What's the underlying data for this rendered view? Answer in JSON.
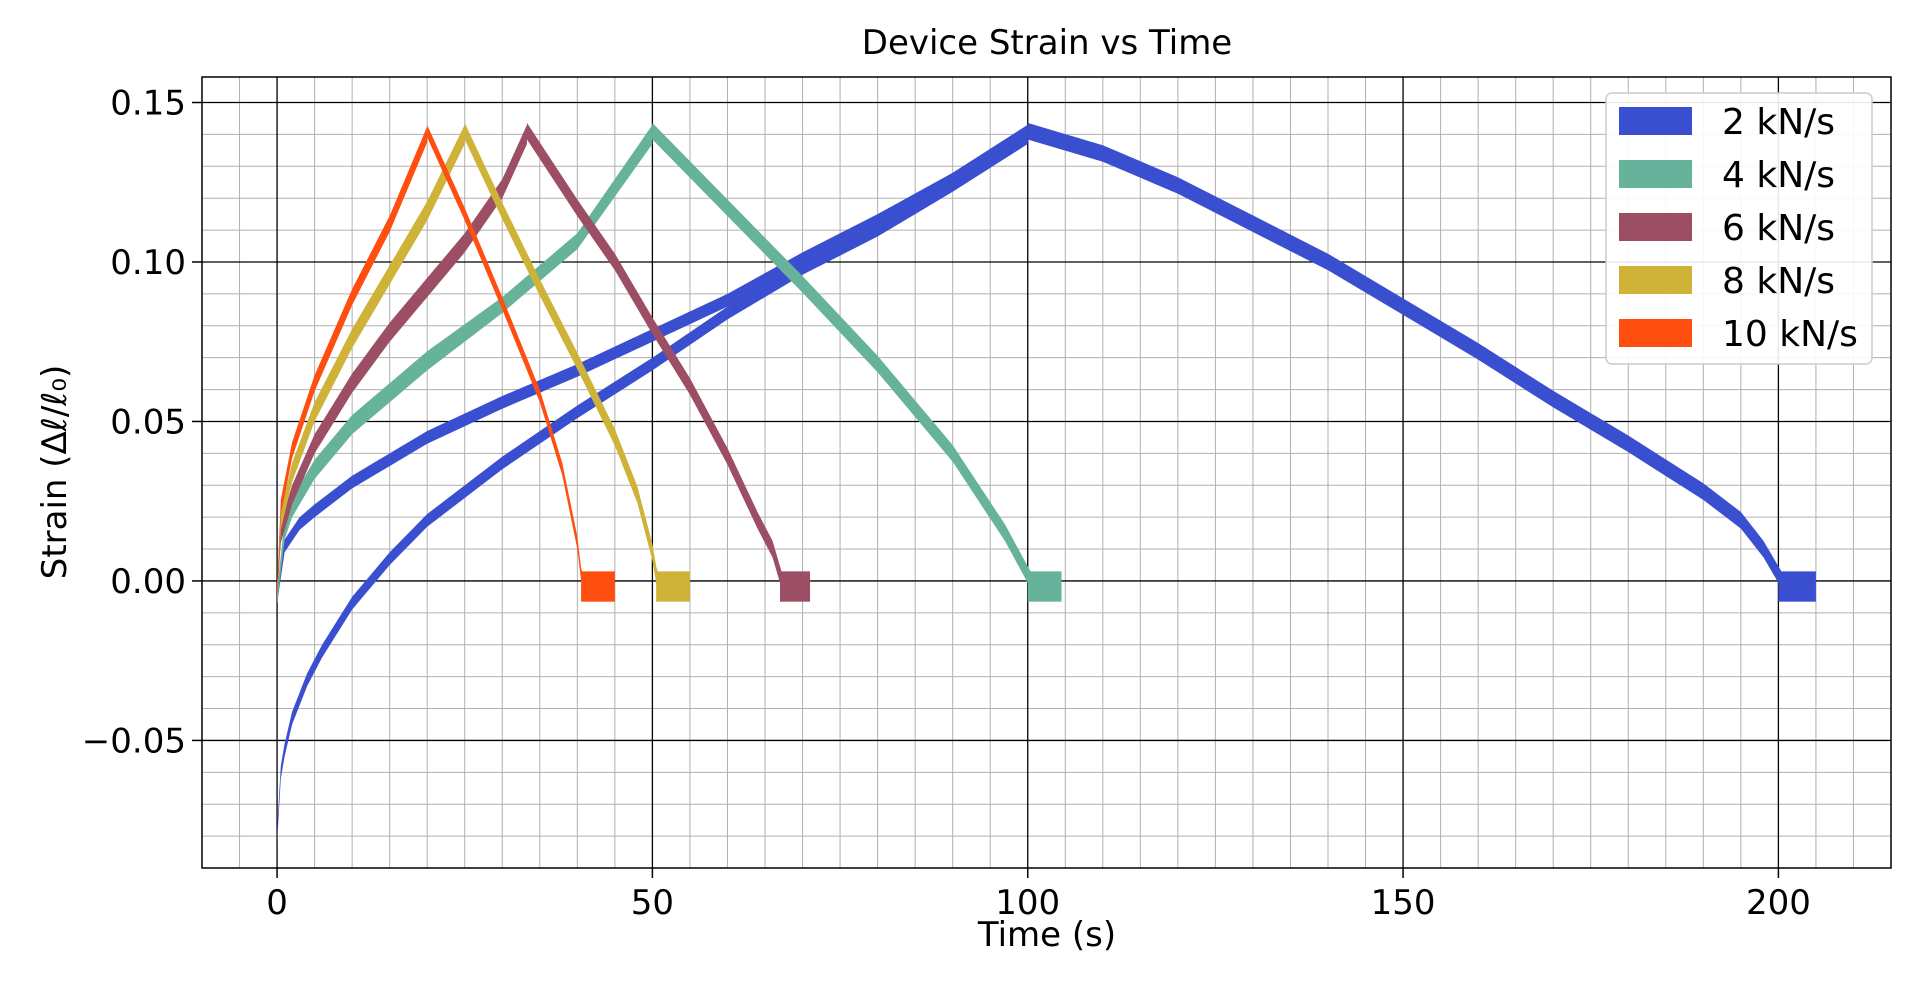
{
  "chart_data": {
    "type": "line",
    "title": "Device Strain vs Time",
    "xlabel": "Time (s)",
    "ylabel": "Strain (Δℓ/ℓ₀)",
    "xlim": [
      -10,
      215
    ],
    "ylim": [
      -0.09,
      0.158
    ],
    "x_ticks": [
      0,
      50,
      100,
      150,
      200
    ],
    "x_tick_labels": [
      "0",
      "50",
      "100",
      "150",
      "200"
    ],
    "y_ticks": [
      -0.05,
      0.0,
      0.05,
      0.1,
      0.15
    ],
    "y_tick_labels": [
      "−0.05",
      "0.00",
      "0.05",
      "0.10",
      "0.15"
    ],
    "x_minor_step": 5,
    "y_minor_step": 0.01,
    "grid": true,
    "legend_position": "top-right",
    "series": [
      {
        "name": "2 kN/s",
        "color": "#3a4fd0",
        "band_width": 0.004,
        "loading_upper": [
          [
            0,
            -0.005
          ],
          [
            1,
            0.011
          ],
          [
            3,
            0.018
          ],
          [
            5,
            0.022
          ],
          [
            10,
            0.031
          ],
          [
            20,
            0.045
          ],
          [
            30,
            0.056
          ],
          [
            40,
            0.066
          ],
          [
            50,
            0.077
          ],
          [
            60,
            0.088
          ],
          [
            70,
            0.101
          ],
          [
            80,
            0.113
          ],
          [
            90,
            0.126
          ],
          [
            100,
            0.141
          ]
        ],
        "loading_lower": [
          [
            0,
            -0.08
          ],
          [
            0.5,
            -0.06
          ],
          [
            1,
            -0.053
          ],
          [
            2,
            -0.043
          ],
          [
            4,
            -0.031
          ],
          [
            6,
            -0.022
          ],
          [
            10,
            -0.007
          ],
          [
            15,
            0.007
          ],
          [
            20,
            0.019
          ],
          [
            30,
            0.037
          ],
          [
            40,
            0.053
          ],
          [
            50,
            0.068
          ],
          [
            60,
            0.084
          ],
          [
            70,
            0.098
          ],
          [
            80,
            0.11
          ],
          [
            90,
            0.124
          ],
          [
            100,
            0.139
          ]
        ],
        "unloading": [
          [
            100,
            0.141
          ],
          [
            110,
            0.134
          ],
          [
            120,
            0.124
          ],
          [
            130,
            0.112
          ],
          [
            140,
            0.1
          ],
          [
            150,
            0.086
          ],
          [
            160,
            0.072
          ],
          [
            170,
            0.057
          ],
          [
            180,
            0.043
          ],
          [
            190,
            0.028
          ],
          [
            195,
            0.019
          ],
          [
            198,
            0.01
          ],
          [
            200,
            0.002
          ],
          [
            201,
            -0.002
          ]
        ],
        "plateau": [
          200,
          205
        ]
      },
      {
        "name": "4 kN/s",
        "color": "#66b29b",
        "band_width": 0.004,
        "loading_upper": [
          [
            0,
            -0.005
          ],
          [
            1,
            0.017
          ],
          [
            2,
            0.024
          ],
          [
            5,
            0.036
          ],
          [
            10,
            0.05
          ],
          [
            20,
            0.07
          ],
          [
            30,
            0.087
          ],
          [
            40,
            0.107
          ],
          [
            50,
            0.141
          ]
        ],
        "loading_lower": [
          [
            0,
            -0.005
          ],
          [
            1,
            0.015
          ],
          [
            2,
            0.022
          ],
          [
            5,
            0.034
          ],
          [
            10,
            0.048
          ],
          [
            20,
            0.068
          ],
          [
            30,
            0.086
          ],
          [
            40,
            0.106
          ],
          [
            50,
            0.139
          ]
        ],
        "unloading": [
          [
            50,
            0.141
          ],
          [
            60,
            0.117
          ],
          [
            70,
            0.093
          ],
          [
            80,
            0.068
          ],
          [
            90,
            0.04
          ],
          [
            97,
            0.015
          ],
          [
            100,
            0.002
          ],
          [
            101,
            -0.002
          ]
        ],
        "plateau": [
          100,
          104.5
        ]
      },
      {
        "name": "6 kN/s",
        "color": "#9b4e64",
        "band_width": 0.004,
        "loading_upper": [
          [
            0,
            -0.003
          ],
          [
            0.5,
            0.016
          ],
          [
            2,
            0.028
          ],
          [
            5,
            0.044
          ],
          [
            10,
            0.063
          ],
          [
            15,
            0.079
          ],
          [
            20,
            0.093
          ],
          [
            25,
            0.107
          ],
          [
            30,
            0.124
          ],
          [
            33.3,
            0.141
          ]
        ],
        "loading_lower": [
          [
            0,
            -0.003
          ],
          [
            0.5,
            0.014
          ],
          [
            2,
            0.026
          ],
          [
            5,
            0.042
          ],
          [
            10,
            0.061
          ],
          [
            15,
            0.077
          ],
          [
            20,
            0.091
          ],
          [
            25,
            0.105
          ],
          [
            30,
            0.122
          ],
          [
            33.3,
            0.139
          ]
        ],
        "unloading": [
          [
            33.3,
            0.141
          ],
          [
            40,
            0.117
          ],
          [
            45,
            0.1
          ],
          [
            50,
            0.08
          ],
          [
            55,
            0.061
          ],
          [
            60,
            0.039
          ],
          [
            64,
            0.019
          ],
          [
            66,
            0.01
          ],
          [
            67,
            0.002
          ],
          [
            67.5,
            -0.002
          ]
        ],
        "plateau": [
          67,
          71
        ]
      },
      {
        "name": "8 kN/s",
        "color": "#ceb338",
        "band_width": 0.004,
        "loading_upper": [
          [
            0,
            -0.003
          ],
          [
            0.5,
            0.02
          ],
          [
            2,
            0.035
          ],
          [
            5,
            0.054
          ],
          [
            10,
            0.077
          ],
          [
            15,
            0.097
          ],
          [
            20,
            0.117
          ],
          [
            25,
            0.141
          ]
        ],
        "loading_lower": [
          [
            0,
            -0.003
          ],
          [
            0.5,
            0.018
          ],
          [
            2,
            0.033
          ],
          [
            5,
            0.052
          ],
          [
            10,
            0.075
          ],
          [
            15,
            0.095
          ],
          [
            20,
            0.115
          ],
          [
            25,
            0.139
          ]
        ],
        "unloading": [
          [
            25,
            0.141
          ],
          [
            30,
            0.116
          ],
          [
            35,
            0.092
          ],
          [
            40,
            0.069
          ],
          [
            45,
            0.045
          ],
          [
            48,
            0.027
          ],
          [
            50,
            0.009
          ],
          [
            50.5,
            0.002
          ],
          [
            51,
            -0.002
          ]
        ],
        "plateau": [
          50.5,
          55
        ]
      },
      {
        "name": "10 kN/s",
        "color": "#ff4e10",
        "band_width": 0.003,
        "loading_upper": [
          [
            0,
            -0.004
          ],
          [
            0.5,
            0.024
          ],
          [
            2,
            0.042
          ],
          [
            5,
            0.063
          ],
          [
            10,
            0.09
          ],
          [
            15,
            0.113
          ],
          [
            20,
            0.141
          ]
        ],
        "loading_lower": [
          [
            0,
            -0.004
          ],
          [
            0.5,
            0.022
          ],
          [
            2,
            0.04
          ],
          [
            5,
            0.061
          ],
          [
            10,
            0.088
          ],
          [
            15,
            0.111
          ],
          [
            20,
            0.139
          ]
        ],
        "unloading": [
          [
            20,
            0.141
          ],
          [
            25,
            0.115
          ],
          [
            30,
            0.087
          ],
          [
            35,
            0.058
          ],
          [
            38,
            0.035
          ],
          [
            40,
            0.012
          ],
          [
            40.5,
            0.002
          ],
          [
            41,
            -0.002
          ]
        ],
        "plateau": [
          40.5,
          45
        ]
      }
    ]
  }
}
